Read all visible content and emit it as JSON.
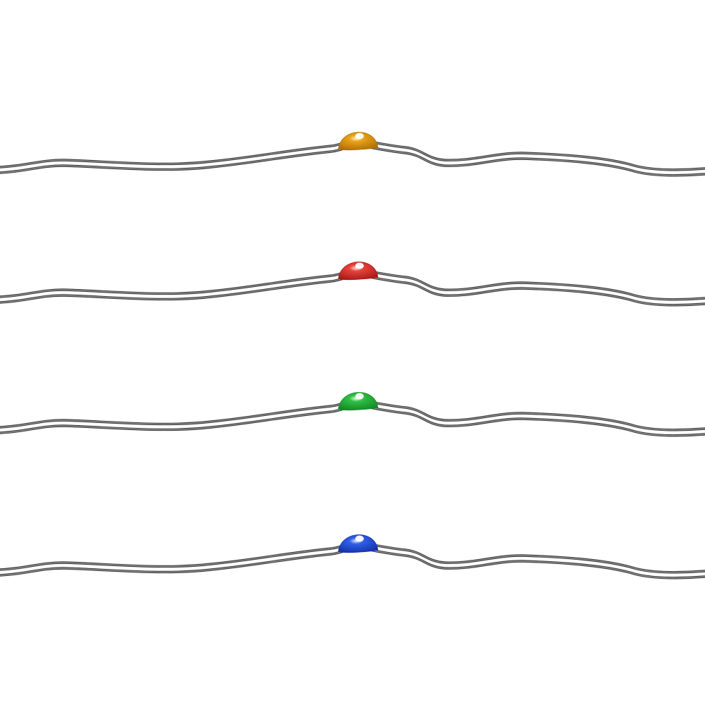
{
  "background_color": "#ffffff",
  "wire_color": "#3a3a3a",
  "wire_highlight_color": "#9a9a9a",
  "strands": [
    {
      "name": "amber-led-strand",
      "led_color": "#e8a21a",
      "led_dark": "#b06f05",
      "led_glow": "#fff3c8"
    },
    {
      "name": "red-led-strand",
      "led_color": "#e8423c",
      "led_dark": "#a81a16",
      "led_glow": "#ffe0dc"
    },
    {
      "name": "green-led-strand",
      "led_color": "#2fbf45",
      "led_dark": "#138a26",
      "led_glow": "#e2ffe6"
    },
    {
      "name": "blue-led-strand",
      "led_color": "#2f5fe8",
      "led_dark": "#1633a8",
      "led_glow": "#e2ecff"
    }
  ]
}
